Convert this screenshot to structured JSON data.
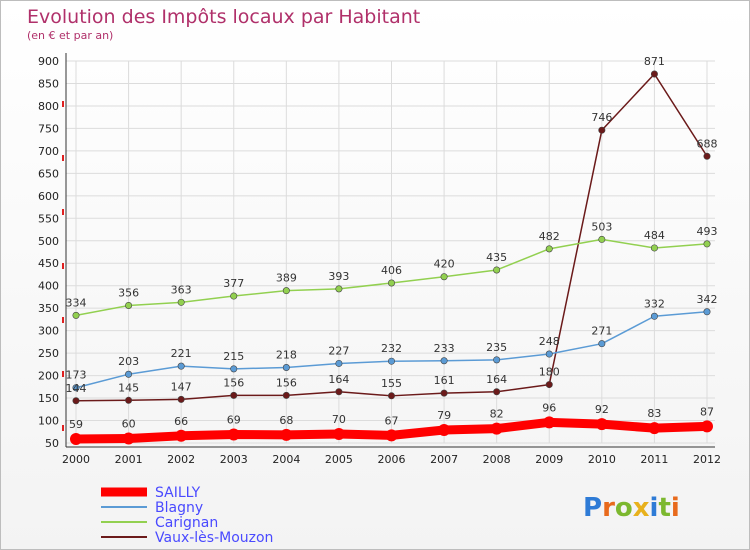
{
  "chart_data": {
    "type": "line",
    "title": "Evolution des Impôts locaux par Habitant",
    "subtitle": "(en € et par an)",
    "x": [
      "2000",
      "2001",
      "2002",
      "2003",
      "2004",
      "2005",
      "2006",
      "2007",
      "2008",
      "2009",
      "2010",
      "2011",
      "2012"
    ],
    "ylim": [
      50,
      900
    ],
    "yticks": [
      50,
      100,
      150,
      200,
      250,
      300,
      350,
      400,
      450,
      500,
      550,
      600,
      650,
      700,
      750,
      800,
      850,
      900
    ],
    "grid": true,
    "legend_placement": "bottom-left",
    "series": [
      {
        "name": "SAILLY",
        "color": "#ff0000",
        "values": [
          59,
          60,
          66,
          69,
          68,
          70,
          67,
          79,
          82,
          96,
          92,
          83,
          87
        ]
      },
      {
        "name": "Blagny",
        "color": "#5b9bd5",
        "values": [
          173,
          203,
          221,
          215,
          218,
          227,
          232,
          233,
          235,
          248,
          271,
          332,
          342
        ]
      },
      {
        "name": "Carignan",
        "color": "#92d050",
        "values": [
          334,
          356,
          363,
          377,
          389,
          393,
          406,
          420,
          435,
          482,
          503,
          484,
          493
        ]
      },
      {
        "name": "Vaux-lès-Mouzon",
        "color": "#6b1a1a",
        "values": [
          144,
          145,
          147,
          156,
          156,
          164,
          155,
          161,
          164,
          180,
          746,
          871,
          688
        ]
      }
    ]
  },
  "logo": {
    "letters": [
      "P",
      "r",
      "o",
      "x",
      "i",
      "t",
      "i"
    ],
    "colors": [
      "#2e7bd6",
      "#e86a1c",
      "#7cb82f",
      "#e8b11c",
      "#2e7bd6",
      "#7cb82f",
      "#e86a1c"
    ]
  }
}
